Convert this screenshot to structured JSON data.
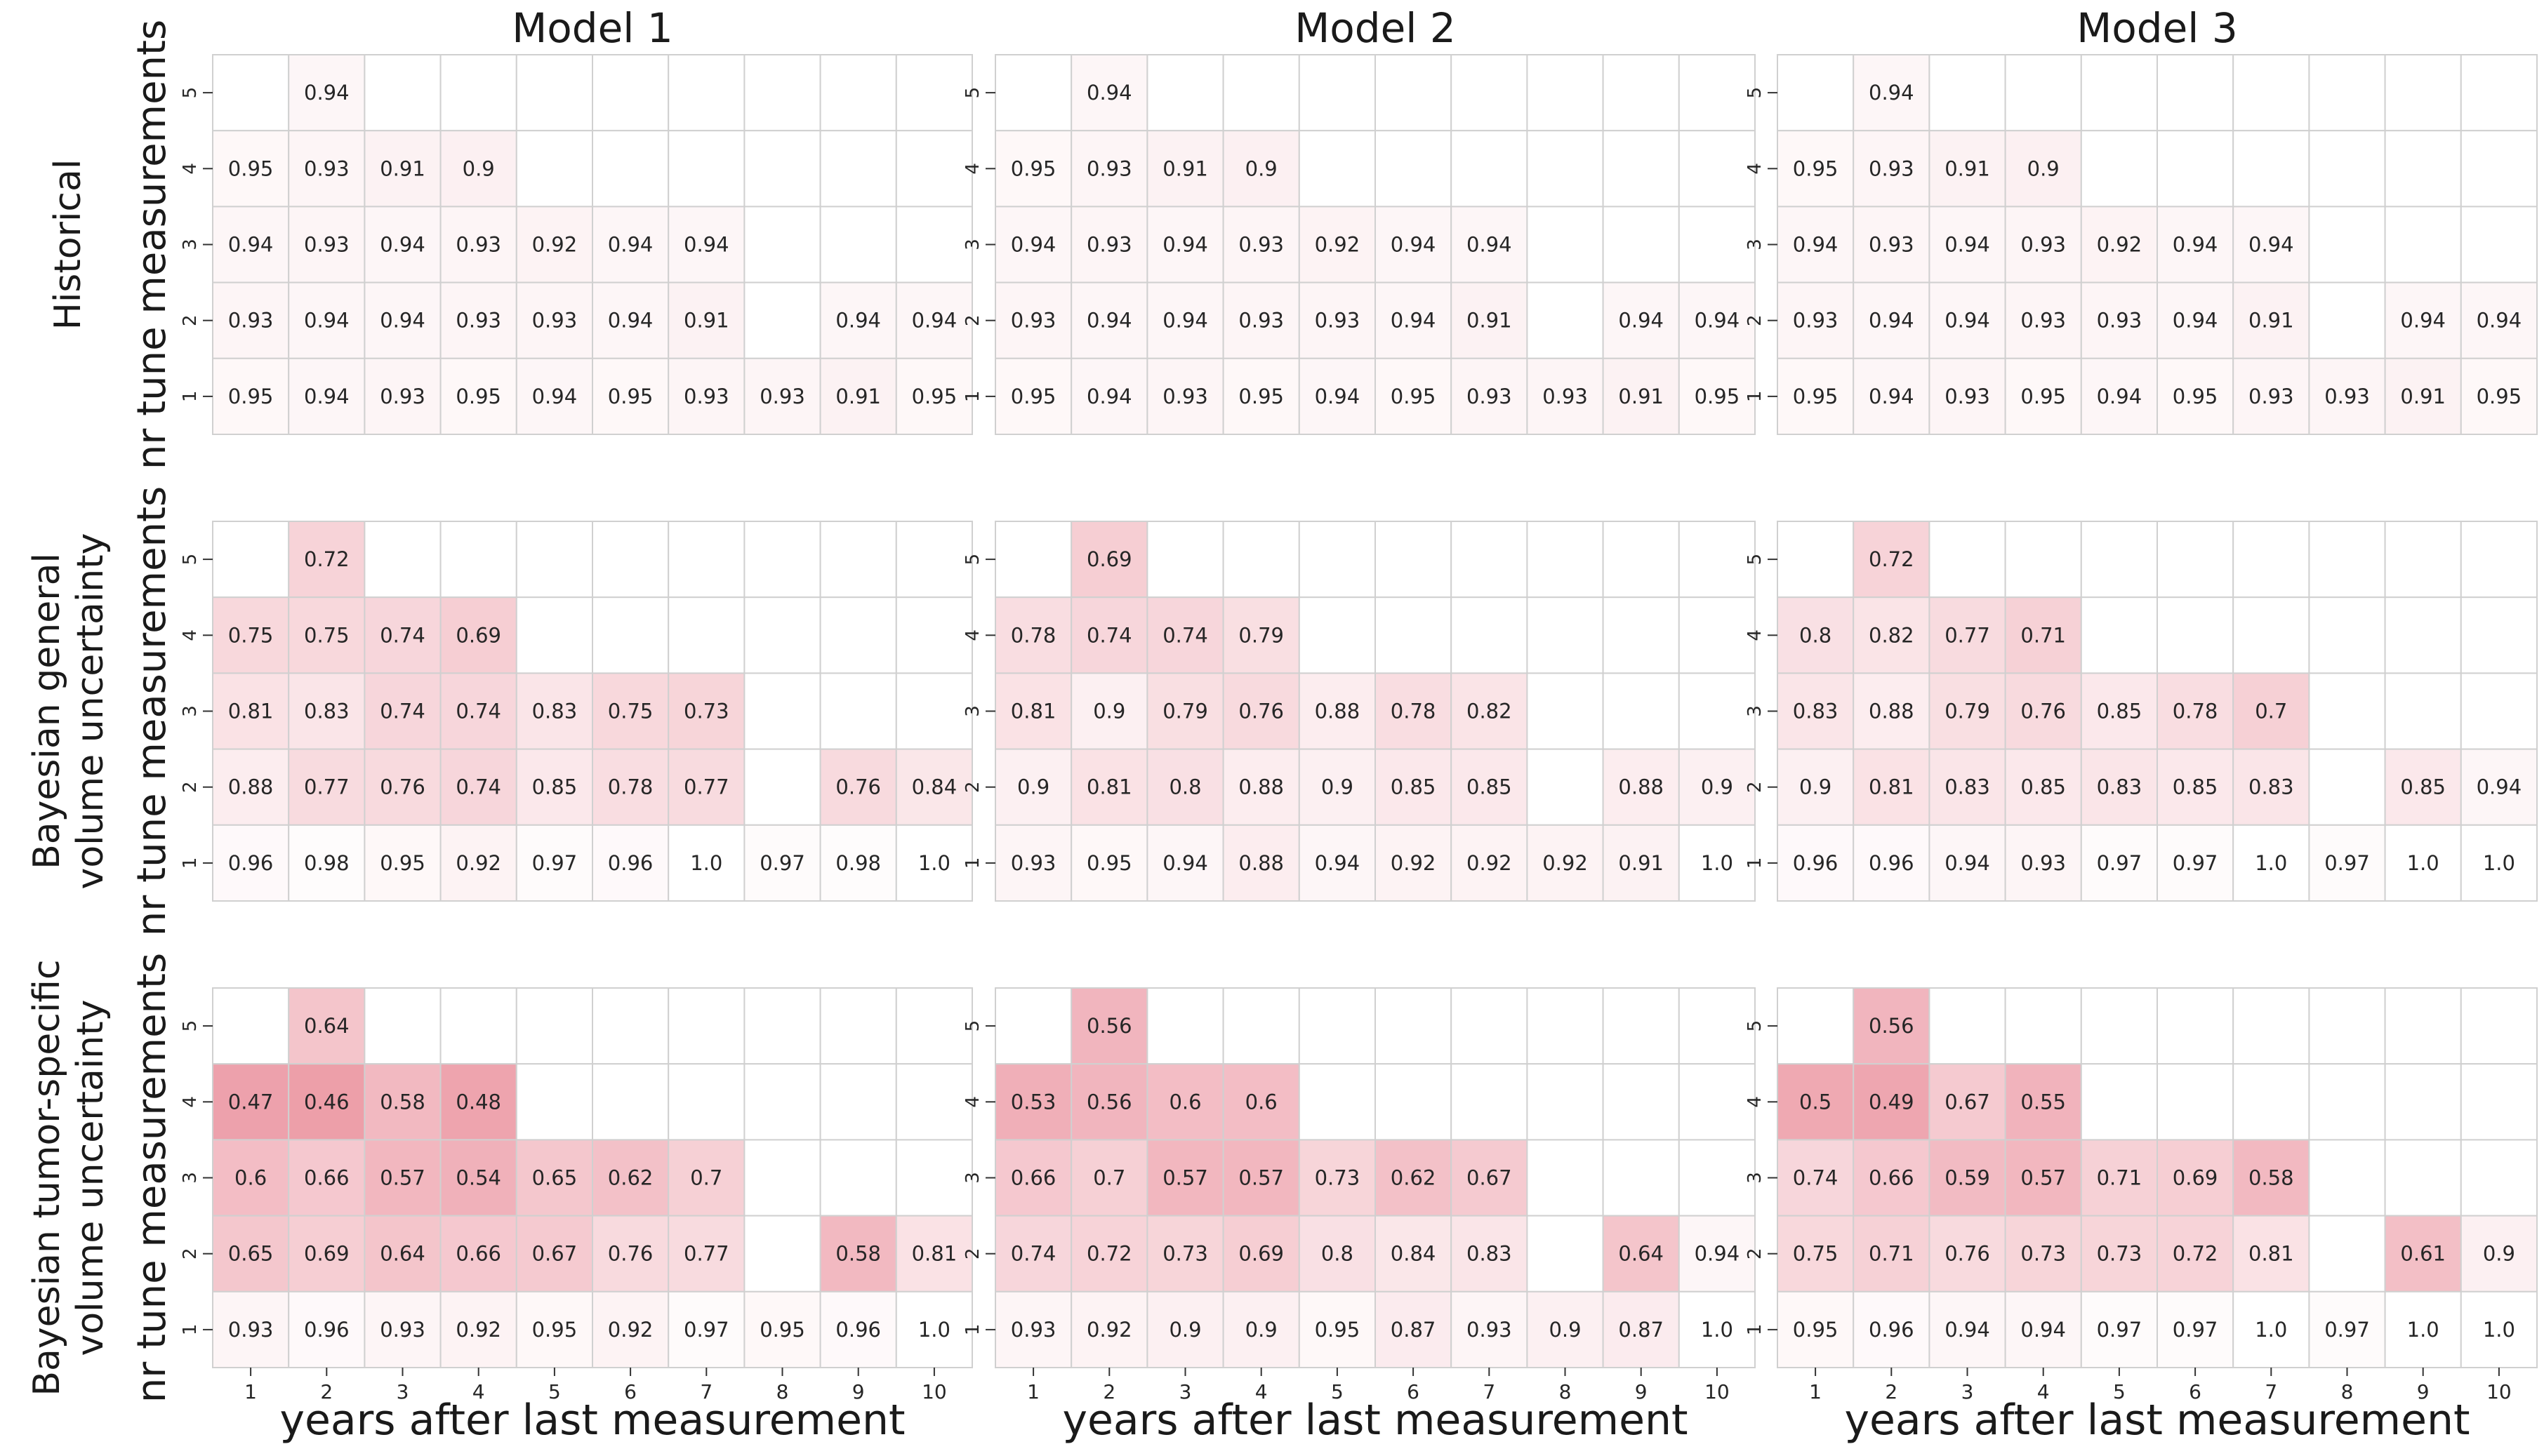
{
  "chart_data": {
    "type": "heatmap",
    "colormap": {
      "low_value_color": "#e98a97",
      "high_value_color": "#ffffff",
      "grid_color": "#d0d0d0"
    },
    "x_ticks": [
      "1",
      "2",
      "3",
      "4",
      "5",
      "6",
      "7",
      "8",
      "9",
      "10"
    ],
    "y_ticks": [
      "1",
      "2",
      "3",
      "4",
      "5"
    ],
    "xlabel": "years after last measurement",
    "ylabel": "nr tune measurements",
    "col_titles": [
      "Model 1",
      "Model 2",
      "Model 3"
    ],
    "row_labels": [
      [
        "Historical"
      ],
      [
        "Bayesian general",
        "volume uncertainty"
      ],
      [
        "Bayesian tumor-specific",
        "volume uncertainty"
      ]
    ],
    "panels": [
      [
        [
          [
            null,
            "0.94",
            null,
            null,
            null,
            null,
            null,
            null,
            null,
            null
          ],
          [
            "0.95",
            "0.93",
            "0.91",
            "0.9",
            null,
            null,
            null,
            null,
            null,
            null
          ],
          [
            "0.94",
            "0.93",
            "0.94",
            "0.93",
            "0.92",
            "0.94",
            "0.94",
            null,
            null,
            null
          ],
          [
            "0.93",
            "0.94",
            "0.94",
            "0.93",
            "0.93",
            "0.94",
            "0.91",
            null,
            "0.94",
            "0.94"
          ],
          [
            "0.95",
            "0.94",
            "0.93",
            "0.95",
            "0.94",
            "0.95",
            "0.93",
            "0.93",
            "0.91",
            "0.95"
          ]
        ],
        [
          [
            null,
            "0.94",
            null,
            null,
            null,
            null,
            null,
            null,
            null,
            null
          ],
          [
            "0.95",
            "0.93",
            "0.91",
            "0.9",
            null,
            null,
            null,
            null,
            null,
            null
          ],
          [
            "0.94",
            "0.93",
            "0.94",
            "0.93",
            "0.92",
            "0.94",
            "0.94",
            null,
            null,
            null
          ],
          [
            "0.93",
            "0.94",
            "0.94",
            "0.93",
            "0.93",
            "0.94",
            "0.91",
            null,
            "0.94",
            "0.94"
          ],
          [
            "0.95",
            "0.94",
            "0.93",
            "0.95",
            "0.94",
            "0.95",
            "0.93",
            "0.93",
            "0.91",
            "0.95"
          ]
        ],
        [
          [
            null,
            "0.94",
            null,
            null,
            null,
            null,
            null,
            null,
            null,
            null
          ],
          [
            "0.95",
            "0.93",
            "0.91",
            "0.9",
            null,
            null,
            null,
            null,
            null,
            null
          ],
          [
            "0.94",
            "0.93",
            "0.94",
            "0.93",
            "0.92",
            "0.94",
            "0.94",
            null,
            null,
            null
          ],
          [
            "0.93",
            "0.94",
            "0.94",
            "0.93",
            "0.93",
            "0.94",
            "0.91",
            null,
            "0.94",
            "0.94"
          ],
          [
            "0.95",
            "0.94",
            "0.93",
            "0.95",
            "0.94",
            "0.95",
            "0.93",
            "0.93",
            "0.91",
            "0.95"
          ]
        ]
      ],
      [
        [
          [
            null,
            "0.72",
            null,
            null,
            null,
            null,
            null,
            null,
            null,
            null
          ],
          [
            "0.75",
            "0.75",
            "0.74",
            "0.69",
            null,
            null,
            null,
            null,
            null,
            null
          ],
          [
            "0.81",
            "0.83",
            "0.74",
            "0.74",
            "0.83",
            "0.75",
            "0.73",
            null,
            null,
            null
          ],
          [
            "0.88",
            "0.77",
            "0.76",
            "0.74",
            "0.85",
            "0.78",
            "0.77",
            null,
            "0.76",
            "0.84"
          ],
          [
            "0.96",
            "0.98",
            "0.95",
            "0.92",
            "0.97",
            "0.96",
            "1.0",
            "0.97",
            "0.98",
            "1.0"
          ]
        ],
        [
          [
            null,
            "0.69",
            null,
            null,
            null,
            null,
            null,
            null,
            null,
            null
          ],
          [
            "0.78",
            "0.74",
            "0.74",
            "0.79",
            null,
            null,
            null,
            null,
            null,
            null
          ],
          [
            "0.81",
            "0.9",
            "0.79",
            "0.76",
            "0.88",
            "0.78",
            "0.82",
            null,
            null,
            null
          ],
          [
            "0.9",
            "0.81",
            "0.8",
            "0.88",
            "0.9",
            "0.85",
            "0.85",
            null,
            "0.88",
            "0.9"
          ],
          [
            "0.93",
            "0.95",
            "0.94",
            "0.88",
            "0.94",
            "0.92",
            "0.92",
            "0.92",
            "0.91",
            "1.0"
          ]
        ],
        [
          [
            null,
            "0.72",
            null,
            null,
            null,
            null,
            null,
            null,
            null,
            null
          ],
          [
            "0.8",
            "0.82",
            "0.77",
            "0.71",
            null,
            null,
            null,
            null,
            null,
            null
          ],
          [
            "0.83",
            "0.88",
            "0.79",
            "0.76",
            "0.85",
            "0.78",
            "0.7",
            null,
            null,
            null
          ],
          [
            "0.9",
            "0.81",
            "0.83",
            "0.85",
            "0.83",
            "0.85",
            "0.83",
            null,
            "0.85",
            "0.94"
          ],
          [
            "0.96",
            "0.96",
            "0.94",
            "0.93",
            "0.97",
            "0.97",
            "1.0",
            "0.97",
            "1.0",
            "1.0"
          ]
        ]
      ],
      [
        [
          [
            null,
            "0.64",
            null,
            null,
            null,
            null,
            null,
            null,
            null,
            null
          ],
          [
            "0.47",
            "0.46",
            "0.58",
            "0.48",
            null,
            null,
            null,
            null,
            null,
            null
          ],
          [
            "0.6",
            "0.66",
            "0.57",
            "0.54",
            "0.65",
            "0.62",
            "0.7",
            null,
            null,
            null
          ],
          [
            "0.65",
            "0.69",
            "0.64",
            "0.66",
            "0.67",
            "0.76",
            "0.77",
            null,
            "0.58",
            "0.81"
          ],
          [
            "0.93",
            "0.96",
            "0.93",
            "0.92",
            "0.95",
            "0.92",
            "0.97",
            "0.95",
            "0.96",
            "1.0"
          ]
        ],
        [
          [
            null,
            "0.56",
            null,
            null,
            null,
            null,
            null,
            null,
            null,
            null
          ],
          [
            "0.53",
            "0.56",
            "0.6",
            "0.6",
            null,
            null,
            null,
            null,
            null,
            null
          ],
          [
            "0.66",
            "0.7",
            "0.57",
            "0.57",
            "0.73",
            "0.62",
            "0.67",
            null,
            null,
            null
          ],
          [
            "0.74",
            "0.72",
            "0.73",
            "0.69",
            "0.8",
            "0.84",
            "0.83",
            null,
            "0.64",
            "0.94"
          ],
          [
            "0.93",
            "0.92",
            "0.9",
            "0.9",
            "0.95",
            "0.87",
            "0.93",
            "0.9",
            "0.87",
            "1.0"
          ]
        ],
        [
          [
            null,
            "0.56",
            null,
            null,
            null,
            null,
            null,
            null,
            null,
            null
          ],
          [
            "0.5",
            "0.49",
            "0.67",
            "0.55",
            null,
            null,
            null,
            null,
            null,
            null
          ],
          [
            "0.74",
            "0.66",
            "0.59",
            "0.57",
            "0.71",
            "0.69",
            "0.58",
            null,
            null,
            null
          ],
          [
            "0.75",
            "0.71",
            "0.76",
            "0.73",
            "0.73",
            "0.72",
            "0.81",
            null,
            "0.61",
            "0.9"
          ],
          [
            "0.95",
            "0.96",
            "0.94",
            "0.94",
            "0.97",
            "0.97",
            "1.0",
            "0.97",
            "1.0",
            "1.0"
          ]
        ]
      ]
    ]
  }
}
